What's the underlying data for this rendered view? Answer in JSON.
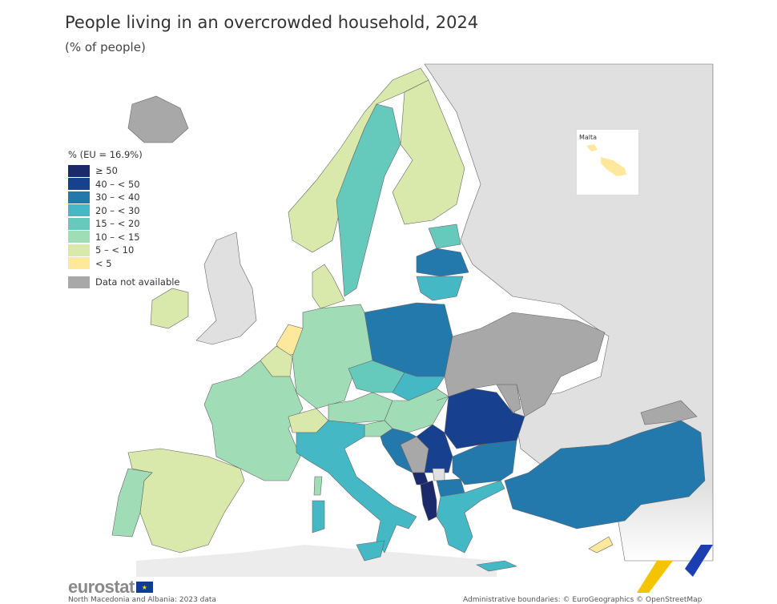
{
  "header": {
    "title": "People living in an overcrowded household, 2024",
    "subtitle": "(% of people)"
  },
  "legend": {
    "title": "% (EU = 16.9%)",
    "classes": [
      {
        "label": "≥ 50",
        "color": "#1b2a6b"
      },
      {
        "label": "40 – < 50",
        "color": "#17418e"
      },
      {
        "label": "30 – < 40",
        "color": "#2479ac"
      },
      {
        "label": "20 – < 30",
        "color": "#45b8c6"
      },
      {
        "label": "15 – < 20",
        "color": "#65c9bb"
      },
      {
        "label": "10 – < 15",
        "color": "#a0dcb6"
      },
      {
        "label": "5 – < 10",
        "color": "#d8e9ab"
      },
      {
        "label": "< 5",
        "color": "#fde89b"
      }
    ],
    "not_available": {
      "label": "Data not available",
      "color": "#a8a8a8"
    }
  },
  "colors": {
    "non_eu": "#e0e0e0",
    "border": "#555555"
  },
  "inset": {
    "label": "Malta"
  },
  "footer": {
    "logo": "eurostat",
    "note": "North Macedonia and Albania: 2023 data",
    "credits": "Administrative boundaries: © EuroGeographics © OpenStreetMap"
  },
  "countries": [
    {
      "name": "Iceland",
      "class": "na"
    },
    {
      "name": "Norway",
      "class": "5-10"
    },
    {
      "name": "Sweden",
      "class": "15-20"
    },
    {
      "name": "Finland",
      "class": "5-10"
    },
    {
      "name": "Estonia",
      "class": "15-20"
    },
    {
      "name": "Latvia",
      "class": "30-40"
    },
    {
      "name": "Lithuania",
      "class": "20-30"
    },
    {
      "name": "Denmark",
      "class": "5-10"
    },
    {
      "name": "Ireland",
      "class": "5-10"
    },
    {
      "name": "Netherlands",
      "class": "<5"
    },
    {
      "name": "Belgium",
      "class": "5-10"
    },
    {
      "name": "Germany",
      "class": "10-15"
    },
    {
      "name": "France",
      "class": "10-15"
    },
    {
      "name": "Spain",
      "class": "5-10"
    },
    {
      "name": "Portugal",
      "class": "10-15"
    },
    {
      "name": "Switzerland",
      "class": "5-10"
    },
    {
      "name": "Austria",
      "class": "10-15"
    },
    {
      "name": "Czechia",
      "class": "15-20"
    },
    {
      "name": "Poland",
      "class": "30-40"
    },
    {
      "name": "Slovakia",
      "class": "20-30"
    },
    {
      "name": "Hungary",
      "class": "10-15"
    },
    {
      "name": "Slovenia",
      "class": "10-15"
    },
    {
      "name": "Croatia",
      "class": "30-40"
    },
    {
      "name": "Italy",
      "class": "20-30"
    },
    {
      "name": "Serbia",
      "class": "40-50"
    },
    {
      "name": "Romania",
      "class": "40-50"
    },
    {
      "name": "Bulgaria",
      "class": "30-40"
    },
    {
      "name": "Montenegro",
      "class": ">=50"
    },
    {
      "name": "Albania",
      "class": ">=50"
    },
    {
      "name": "North Macedonia",
      "class": "30-40"
    },
    {
      "name": "Greece",
      "class": "20-30"
    },
    {
      "name": "Turkey",
      "class": "30-40"
    },
    {
      "name": "Cyprus",
      "class": "<5"
    },
    {
      "name": "Malta",
      "class": "<5"
    },
    {
      "name": "Ukraine",
      "class": "na"
    },
    {
      "name": "Bosnia and Herzegovina",
      "class": "na"
    }
  ]
}
